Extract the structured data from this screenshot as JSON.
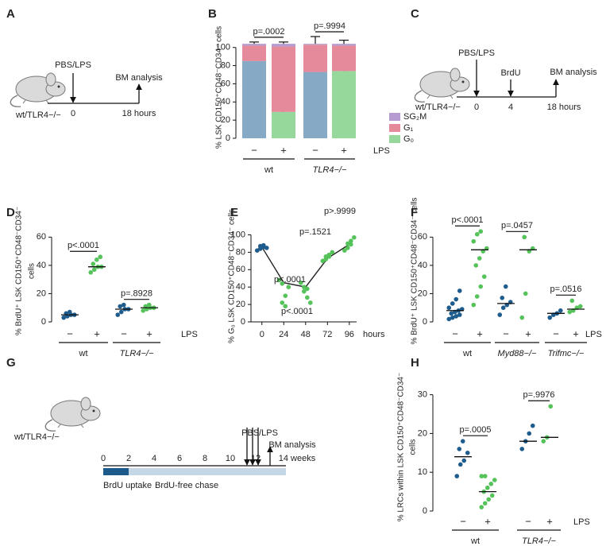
{
  "panel_labels": [
    "A",
    "B",
    "C",
    "D",
    "E",
    "F",
    "G",
    "H"
  ],
  "diagram_a": {
    "treatment": "PBS/LPS",
    "readout": "BM analysis",
    "mice": "wt/TLR4−/−",
    "times": [
      "0",
      "18 hours"
    ]
  },
  "diagram_c": {
    "treatment": "PBS/LPS",
    "label": "BrdU",
    "readout": "BM analysis",
    "mice": "wt/TLR4−/−",
    "times": [
      "0",
      "4",
      "18 hours"
    ]
  },
  "diagram_g": {
    "treatment": "PBS/LPS",
    "readout": "BM analysis",
    "mice": "wt/TLR4−/−",
    "ticks": [
      "0",
      "2",
      "4",
      "6",
      "8",
      "10",
      "12",
      "14 weeks"
    ],
    "phases": [
      "BrdU uptake",
      "BrdU-free chase"
    ]
  },
  "chart_data": [
    {
      "type": "stacked_bar",
      "ylabel": "% LSK CD150⁺CD48⁻CD34⁻ cells",
      "categories": [
        "−",
        "+",
        "−",
        "+"
      ],
      "groups": [
        "wt",
        "TLR4−/−"
      ],
      "treatment_label": "LPS",
      "comparisons": [
        "p=.0002",
        "p=.9994"
      ],
      "ylim": [
        0,
        112
      ],
      "yticks": [
        0,
        20,
        40,
        60,
        80,
        100
      ],
      "series": [
        {
          "name": "G₀",
          "color": "#96d89b",
          "bar_colors": [
            "#86a9c6",
            "#96d89b",
            "#86a9c6",
            "#96d89b"
          ],
          "values": [
            85,
            29,
            73,
            74
          ],
          "errors": [
            3,
            7,
            10,
            11
          ]
        },
        {
          "name": "G₁",
          "color": "#e58a9a",
          "values": [
            17,
            72,
            30,
            28
          ]
        },
        {
          "name": "SG₂M",
          "color": "#b59bd0",
          "values": [
            2,
            3,
            1,
            2
          ],
          "errors": [
            2,
            2,
            8,
            4
          ]
        }
      ]
    },
    {
      "type": "dot_plot",
      "ylabel": [
        "% BrdU⁺ LSK CD150⁺CD48⁻CD34⁻",
        "cells"
      ],
      "categories": [
        "−",
        "+",
        "−",
        "+"
      ],
      "groups": [
        "wt",
        "TLR4−/−"
      ],
      "treatment_label": "LPS",
      "comparisons": [
        "p<.0001",
        "p=.8928"
      ],
      "ylim": [
        0,
        72
      ],
      "yticks": [
        0,
        20,
        40,
        60
      ],
      "colors": [
        "#1f5c8e",
        "#55c25a",
        "#1f5c8e",
        "#55c25a"
      ],
      "values": [
        [
          3,
          4,
          5,
          5,
          6,
          7
        ],
        [
          35,
          37,
          39,
          39,
          41,
          44,
          46
        ],
        [
          5,
          7,
          9,
          9,
          11,
          12
        ],
        [
          8,
          9,
          10,
          10,
          11,
          12
        ]
      ],
      "medians": [
        5,
        39,
        9,
        10
      ]
    },
    {
      "type": "time_course",
      "ylabel": "% G₀ LSK CD150⁺CD48⁻CD34⁻ cells",
      "xlabel": "hours",
      "xlim": [
        -12,
        104
      ],
      "xticks": [
        0,
        24,
        48,
        72,
        96
      ],
      "ylim": [
        0,
        105
      ],
      "yticks": [
        0,
        20,
        40,
        60,
        80,
        100
      ],
      "points": [
        {
          "x": 0,
          "color": "#1f5c8e",
          "values": [
            82,
            84,
            86,
            87,
            88,
            85
          ]
        },
        {
          "x": 24,
          "color": "#55c25a",
          "values": [
            48,
            44,
            30,
            22,
            18,
            40
          ]
        },
        {
          "x": 48,
          "color": "#55c25a",
          "values": [
            45,
            40,
            38,
            35,
            28,
            22
          ]
        },
        {
          "x": 72,
          "color": "#55c25a",
          "values": [
            70,
            72,
            75,
            75,
            77,
            80
          ]
        },
        {
          "x": 96,
          "color": "#55c25a",
          "values": [
            82,
            85,
            89,
            90,
            93,
            97
          ]
        }
      ],
      "line": {
        "color": "#222222",
        "x": [
          0,
          24,
          48,
          72,
          96
        ],
        "values": [
          86,
          45,
          40,
          73,
          89
        ]
      },
      "annotations": [
        "p<.0001",
        "p<.0001",
        "p=.1521",
        "p>.9999"
      ]
    },
    {
      "type": "dot_plot",
      "ylabel": [
        "% BrdU⁺ LSK CD150⁺CD48⁻CD34⁻ cells"
      ],
      "categories": [
        "−",
        "+",
        "−",
        "+",
        "−",
        "+"
      ],
      "groups": [
        "wt",
        "Myd88−/−",
        "Trifmc−/−"
      ],
      "treatment_label": "LPS",
      "comparisons": [
        "p<.0001",
        "p=.0457",
        "p=.0516"
      ],
      "ylim": [
        0,
        72
      ],
      "yticks": [
        0,
        20,
        40,
        60
      ],
      "colors": [
        "#1f5c8e",
        "#55c25a",
        "#1f5c8e",
        "#55c25a",
        "#1f5c8e",
        "#55c25a"
      ],
      "values": [
        [
          2,
          3,
          4,
          5,
          6,
          7,
          8,
          9,
          10,
          13,
          16,
          22
        ],
        [
          12,
          18,
          25,
          32,
          40,
          45,
          50,
          52,
          57,
          62,
          64
        ],
        [
          5,
          10,
          12,
          14,
          17,
          25
        ],
        [
          3,
          20,
          50,
          52,
          60
        ],
        [
          3,
          5,
          6,
          8
        ],
        [
          7,
          8,
          10,
          11,
          15
        ]
      ],
      "medians": [
        8,
        51,
        13,
        51,
        6,
        9
      ]
    },
    {
      "type": "dot_plot",
      "ylabel": [
        "% LRCs within LSK CD150⁺CD48⁻CD34⁻",
        "cells"
      ],
      "categories": [
        "−",
        "+",
        "−",
        "+"
      ],
      "groups": [
        "wt",
        "TLR4−/−"
      ],
      "treatment_label": "LPS",
      "comparisons": [
        "p=.0005",
        "p=.9976"
      ],
      "ylim": [
        0,
        33
      ],
      "yticks": [
        0,
        10,
        20,
        30
      ],
      "colors": [
        "#1f5c8e",
        "#55c25a",
        "#1f5c8e",
        "#55c25a"
      ],
      "values": [
        [
          9,
          12,
          13,
          15,
          16,
          18
        ],
        [
          1,
          2,
          3,
          4,
          5,
          6,
          7,
          8,
          9,
          9
        ],
        [
          16,
          18,
          20,
          22
        ],
        [
          18,
          19,
          27
        ]
      ],
      "medians": [
        14,
        5,
        18,
        19
      ]
    }
  ]
}
